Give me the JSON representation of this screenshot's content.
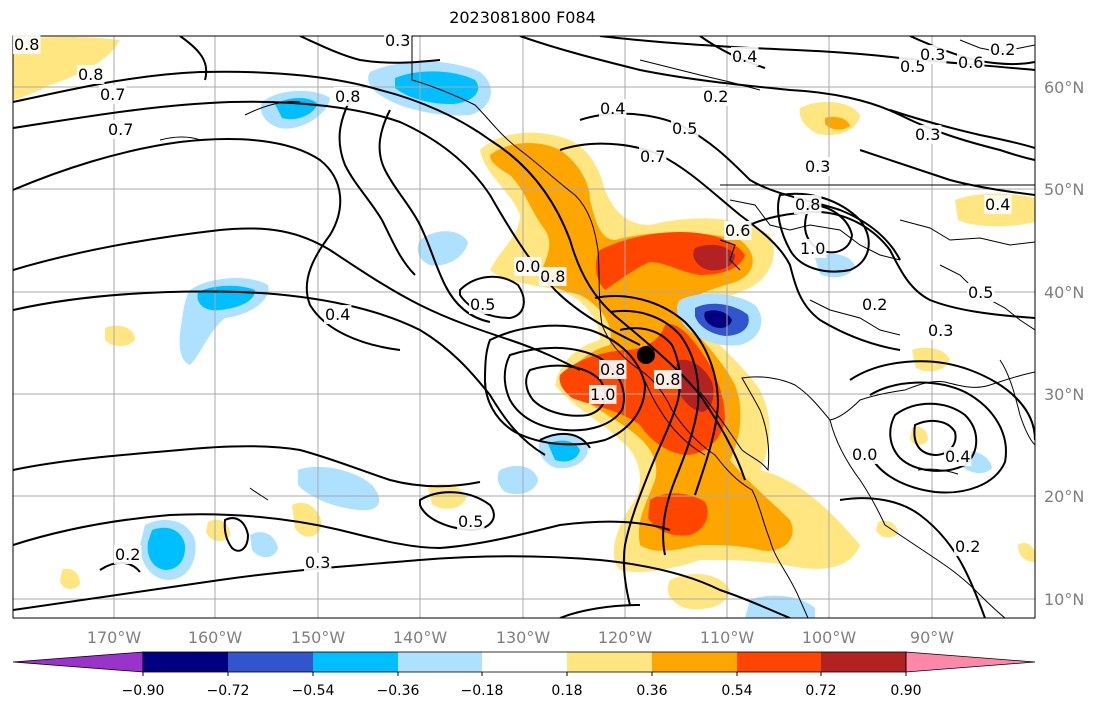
{
  "title": "2023081800 F084",
  "lon_labels": [
    "170°W",
    "160°W",
    "150°W",
    "140°W",
    "130°W",
    "120°W",
    "110°W",
    "100°W",
    "90°W"
  ],
  "lat_labels": [
    "60°N",
    "50°N",
    "40°N",
    "30°N",
    "20°N",
    "10°N"
  ],
  "colorbar": {
    "ticks": [
      "−0.90",
      "−0.72",
      "−0.54",
      "−0.36",
      "−0.18",
      "0.18",
      "0.36",
      "0.54",
      "0.72",
      "0.90"
    ],
    "colors": [
      "#9933cc",
      "#000080",
      "#3355cc",
      "#00bfff",
      "#aee0ff",
      "#ffffff",
      "#ffe680",
      "#ffa500",
      "#ff4500",
      "#b22222",
      "#ff88aa"
    ]
  },
  "contour_labels": [
    "0.8",
    "0.8",
    "0.7",
    "0.7",
    "0.8",
    "0.3",
    "0.4",
    "0.4",
    "0.2",
    "0.5",
    "0.6",
    "0.2",
    "0.3",
    "0.5",
    "0.7",
    "0.3",
    "0.8",
    "0.6",
    "1.0",
    "0.8",
    "0.0",
    "0.5",
    "0.4",
    "0.2",
    "0.3",
    "0.5",
    "0.8",
    "1.0",
    "0.8",
    "0.3",
    "0.4",
    "0.5",
    "0.2",
    "0.3",
    "0.2",
    "0.0",
    "0.4"
  ],
  "marker": "storm-center"
}
